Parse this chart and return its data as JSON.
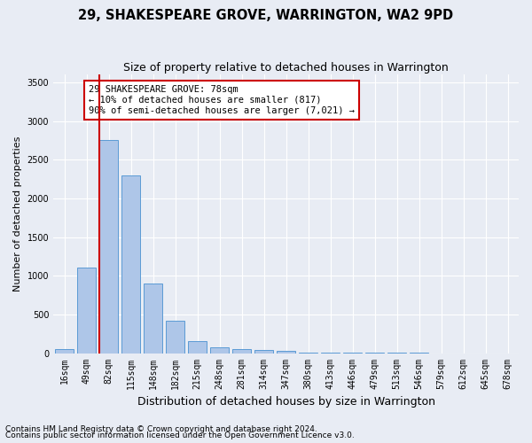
{
  "title": "29, SHAKESPEARE GROVE, WARRINGTON, WA2 9PD",
  "subtitle": "Size of property relative to detached houses in Warrington",
  "xlabel": "Distribution of detached houses by size in Warrington",
  "ylabel": "Number of detached properties",
  "categories": [
    "16sqm",
    "49sqm",
    "82sqm",
    "115sqm",
    "148sqm",
    "182sqm",
    "215sqm",
    "248sqm",
    "281sqm",
    "314sqm",
    "347sqm",
    "380sqm",
    "413sqm",
    "446sqm",
    "479sqm",
    "513sqm",
    "546sqm",
    "579sqm",
    "612sqm",
    "645sqm",
    "678sqm"
  ],
  "values": [
    50,
    1100,
    2750,
    2300,
    900,
    420,
    160,
    80,
    55,
    45,
    25,
    10,
    5,
    3,
    2,
    1,
    1,
    0,
    0,
    0,
    0
  ],
  "bar_color": "#aec6e8",
  "bar_edge_color": "#5b9bd5",
  "highlight_bar_index": 2,
  "highlight_bar_color": "#cc0000",
  "annotation_line1": "29 SHAKESPEARE GROVE: 78sqm",
  "annotation_line2": "← 10% of detached houses are smaller (817)",
  "annotation_line3": "90% of semi-detached houses are larger (7,021) →",
  "annotation_box_color": "#ffffff",
  "annotation_box_edge_color": "#cc0000",
  "ylim": [
    0,
    3600
  ],
  "yticks": [
    0,
    500,
    1000,
    1500,
    2000,
    2500,
    3000,
    3500
  ],
  "background_color": "#e8ecf4",
  "plot_background_color": "#e8ecf4",
  "grid_color": "#ffffff",
  "footnote1": "Contains HM Land Registry data © Crown copyright and database right 2024.",
  "footnote2": "Contains public sector information licensed under the Open Government Licence v3.0.",
  "title_fontsize": 10.5,
  "subtitle_fontsize": 9,
  "xlabel_fontsize": 9,
  "ylabel_fontsize": 8,
  "tick_fontsize": 7,
  "annotation_fontsize": 7.5,
  "footnote_fontsize": 6.5
}
